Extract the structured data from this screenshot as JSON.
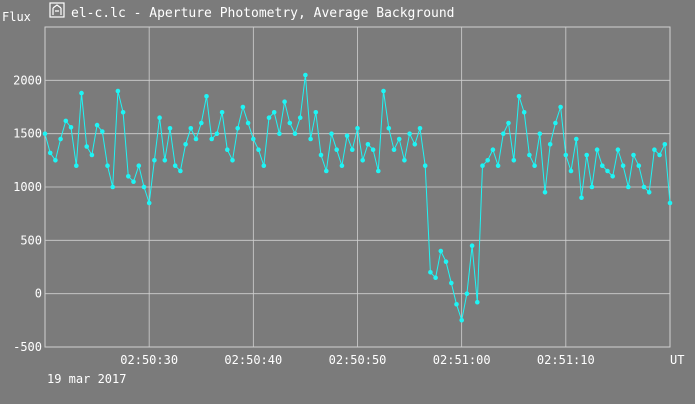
{
  "window": {
    "title": "el-c.lc - Aperture Photometry, Average Background",
    "icon": "telescope-icon"
  },
  "colors": {
    "background": "#7b7b7b",
    "grid": "#d0d0d0",
    "series": "#1ef5f5",
    "text": "#ffffff"
  },
  "chart_data": {
    "type": "scatter",
    "title": "el-c.lc - Aperture Photometry, Average Background",
    "ylabel": "Flux",
    "xlabel": "UT",
    "date_label": "19 mar 2017",
    "xlim": [
      "02:50:20",
      "02:51:20"
    ],
    "ylim": [
      -500,
      2500
    ],
    "yticks": [
      -500,
      0,
      500,
      1000,
      1500,
      2000
    ],
    "xticks": [
      "02:50:30",
      "02:50:40",
      "02:50:50",
      "02:51:00",
      "02:51:10"
    ],
    "grid": true,
    "markers": "points connected by lines",
    "series": [
      {
        "name": "",
        "x": [
          "02:50:20.0",
          "02:50:20.5",
          "02:50:21.0",
          "02:50:21.5",
          "02:50:22.0",
          "02:50:22.5",
          "02:50:23.0",
          "02:50:23.5",
          "02:50:24.0",
          "02:50:24.5",
          "02:50:25.0",
          "02:50:25.5",
          "02:50:26.0",
          "02:50:26.5",
          "02:50:27.0",
          "02:50:27.5",
          "02:50:28.0",
          "02:50:28.5",
          "02:50:29.0",
          "02:50:29.5",
          "02:50:30.0",
          "02:50:30.5",
          "02:50:31.0",
          "02:50:31.5",
          "02:50:32.0",
          "02:50:32.5",
          "02:50:33.0",
          "02:50:33.5",
          "02:50:34.0",
          "02:50:34.5",
          "02:50:35.0",
          "02:50:35.5",
          "02:50:36.0",
          "02:50:36.5",
          "02:50:37.0",
          "02:50:37.5",
          "02:50:38.0",
          "02:50:38.5",
          "02:50:39.0",
          "02:50:39.5",
          "02:50:40.0",
          "02:50:40.5",
          "02:50:41.0",
          "02:50:41.5",
          "02:50:42.0",
          "02:50:42.5",
          "02:50:43.0",
          "02:50:43.5",
          "02:50:44.0",
          "02:50:44.5",
          "02:50:45.0",
          "02:50:45.5",
          "02:50:46.0",
          "02:50:46.5",
          "02:50:47.0",
          "02:50:47.5",
          "02:50:48.0",
          "02:50:48.5",
          "02:50:49.0",
          "02:50:49.5",
          "02:50:50.0",
          "02:50:50.5",
          "02:50:51.0",
          "02:50:51.5",
          "02:50:52.0",
          "02:50:52.5",
          "02:50:53.0",
          "02:50:53.5",
          "02:50:54.0",
          "02:50:54.5",
          "02:50:55.0",
          "02:50:55.5",
          "02:50:56.0",
          "02:50:56.5",
          "02:50:57.0",
          "02:50:57.5",
          "02:50:58.0",
          "02:50:58.5",
          "02:50:59.0",
          "02:50:59.5",
          "02:51:00.0",
          "02:51:00.5",
          "02:51:01.0",
          "02:51:01.5",
          "02:51:02.0",
          "02:51:02.5",
          "02:51:03.0",
          "02:51:03.5",
          "02:51:04.0",
          "02:51:04.5",
          "02:51:05.0",
          "02:51:05.5",
          "02:51:06.0",
          "02:51:06.5",
          "02:51:07.0",
          "02:51:07.5",
          "02:51:08.0",
          "02:51:08.5",
          "02:51:09.0",
          "02:51:09.5",
          "02:51:10.0",
          "02:51:10.5",
          "02:51:11.0",
          "02:51:11.5",
          "02:51:12.0",
          "02:51:12.5",
          "02:51:13.0",
          "02:51:13.5",
          "02:51:14.0",
          "02:51:14.5",
          "02:51:15.0",
          "02:51:15.5",
          "02:51:16.0",
          "02:51:16.5",
          "02:51:17.0",
          "02:51:17.5",
          "02:51:18.0",
          "02:51:18.5",
          "02:51:19.0",
          "02:51:19.5",
          "02:51:20.0"
        ],
        "y": [
          1500,
          1320,
          1250,
          1450,
          1620,
          1560,
          1200,
          1880,
          1380,
          1300,
          1580,
          1520,
          1200,
          1000,
          1900,
          1700,
          1100,
          1050,
          1200,
          1000,
          850,
          1250,
          1650,
          1250,
          1550,
          1200,
          1150,
          1400,
          1550,
          1450,
          1600,
          1850,
          1450,
          1500,
          1700,
          1350,
          1250,
          1550,
          1750,
          1600,
          1450,
          1350,
          1200,
          1650,
          1700,
          1500,
          1800,
          1600,
          1500,
          1650,
          2050,
          1450,
          1700,
          1300,
          1150,
          1500,
          1350,
          1200,
          1480,
          1350,
          1550,
          1250,
          1400,
          1350,
          1150,
          1900,
          1550,
          1350,
          1450,
          1250,
          1500,
          1400,
          1550,
          1200,
          200,
          150,
          400,
          300,
          100,
          -100,
          -250,
          0,
          450,
          -80,
          1200,
          1250,
          1350,
          1200,
          1500,
          1600,
          1250,
          1850,
          1700,
          1300,
          1200,
          1500,
          950,
          1400,
          1600,
          1750,
          1300,
          1150,
          1450,
          900,
          1300,
          1000,
          1350,
          1200,
          1150,
          1100,
          1350,
          1200,
          1000,
          1300,
          1200,
          1000,
          950,
          1350,
          1300,
          1400,
          850
        ]
      }
    ]
  }
}
